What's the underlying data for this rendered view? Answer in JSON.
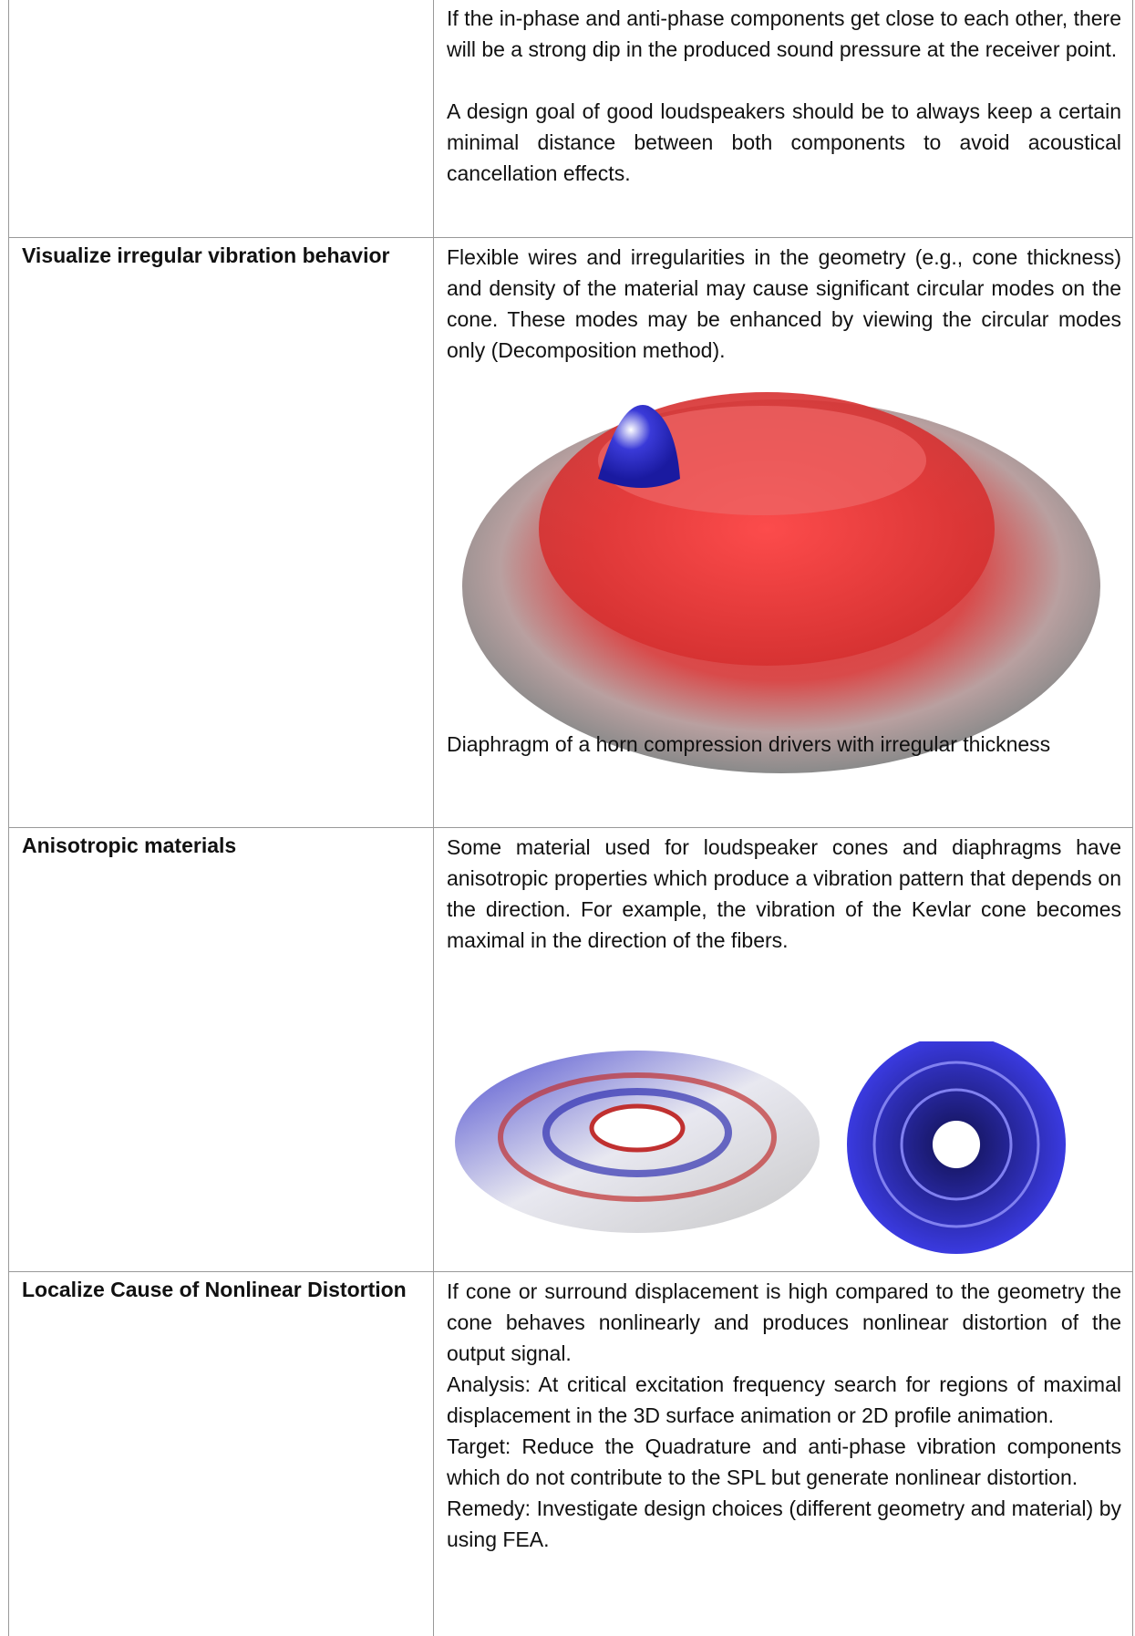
{
  "table": {
    "rows": [
      {
        "paragraphs": [
          "If the in-phase and anti-phase components get close to each other, there will be a strong dip in the produced sound pressure at the receiver point.",
          "A design goal of good loudspeakers should be to always keep a certain minimal distance between both components to avoid acoustical cancellation effects."
        ]
      },
      {
        "label": "Visualize irregular vibration behavior",
        "paragraphs": [
          "Flexible wires and irregularities in the geometry (e.g., cone thickness) and density of the material may cause significant circular modes on the cone. These modes may be enhanced by viewing the circular modes only (Decomposition method)."
        ],
        "caption": "Diaphragm of a horn compression drivers with irregular thickness"
      },
      {
        "label": "Anisotropic materials",
        "paragraphs": [
          "Some material used for loudspeaker cones and diaphragms have anisotropic properties which produce a vibration pattern that depends on the direction. For example, the vibration of the Kevlar cone becomes maximal in the direction of the fibers."
        ]
      },
      {
        "label": "Localize Cause of Nonlinear Distortion",
        "paragraphs": [
          "If cone or surround displacement is high compared to the geometry the cone behaves nonlinearly and produces nonlinear distortion of the output signal.",
          "Analysis: At critical excitation frequency search for regions of maximal displacement in the 3D surface animation or 2D profile animation.",
          "Target: Reduce the Quadrature and anti-phase vibration components which do not contribute to the SPL but generate nonlinear distortion.",
          "Remedy: Investigate design choices (different geometry and material) by using FEA."
        ]
      }
    ]
  }
}
